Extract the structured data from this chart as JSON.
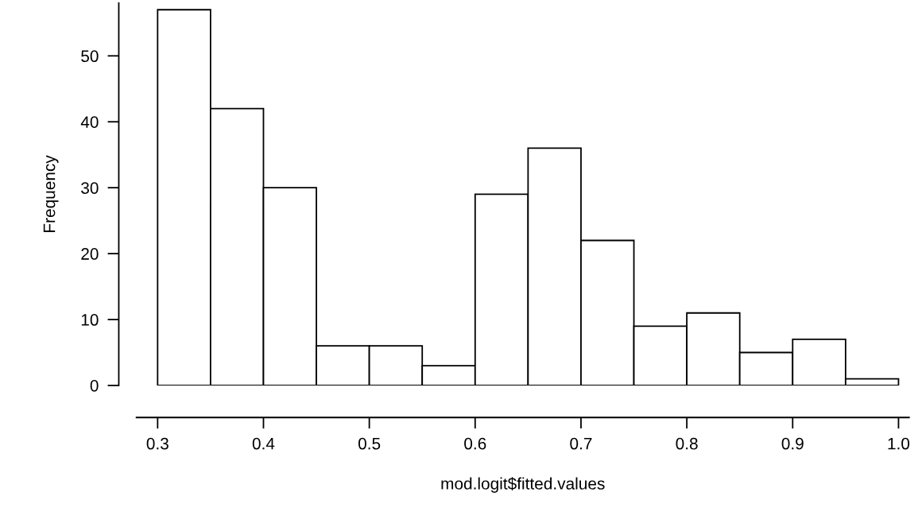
{
  "chart_data": {
    "type": "histogram",
    "xlabel": "mod.logit$fitted.values",
    "ylabel": "Frequency",
    "bins": [
      0.3,
      0.35,
      0.4,
      0.45,
      0.5,
      0.55,
      0.6,
      0.65,
      0.7,
      0.75,
      0.8,
      0.85,
      0.9,
      0.95,
      1.0
    ],
    "values": [
      57,
      42,
      30,
      6,
      6,
      3,
      29,
      36,
      22,
      9,
      11,
      5,
      7,
      1
    ],
    "color": "#ffffff",
    "xlim": [
      0.28,
      1.01
    ],
    "xticks": [
      0.3,
      0.4,
      0.5,
      0.6,
      0.7,
      0.8,
      0.9,
      {
        "value": 1.0,
        "label": "1.0"
      }
    ],
    "ylim": [
      0,
      58
    ],
    "yticks": [
      0,
      10,
      20,
      30,
      40,
      50
    ],
    "grid": false
  }
}
